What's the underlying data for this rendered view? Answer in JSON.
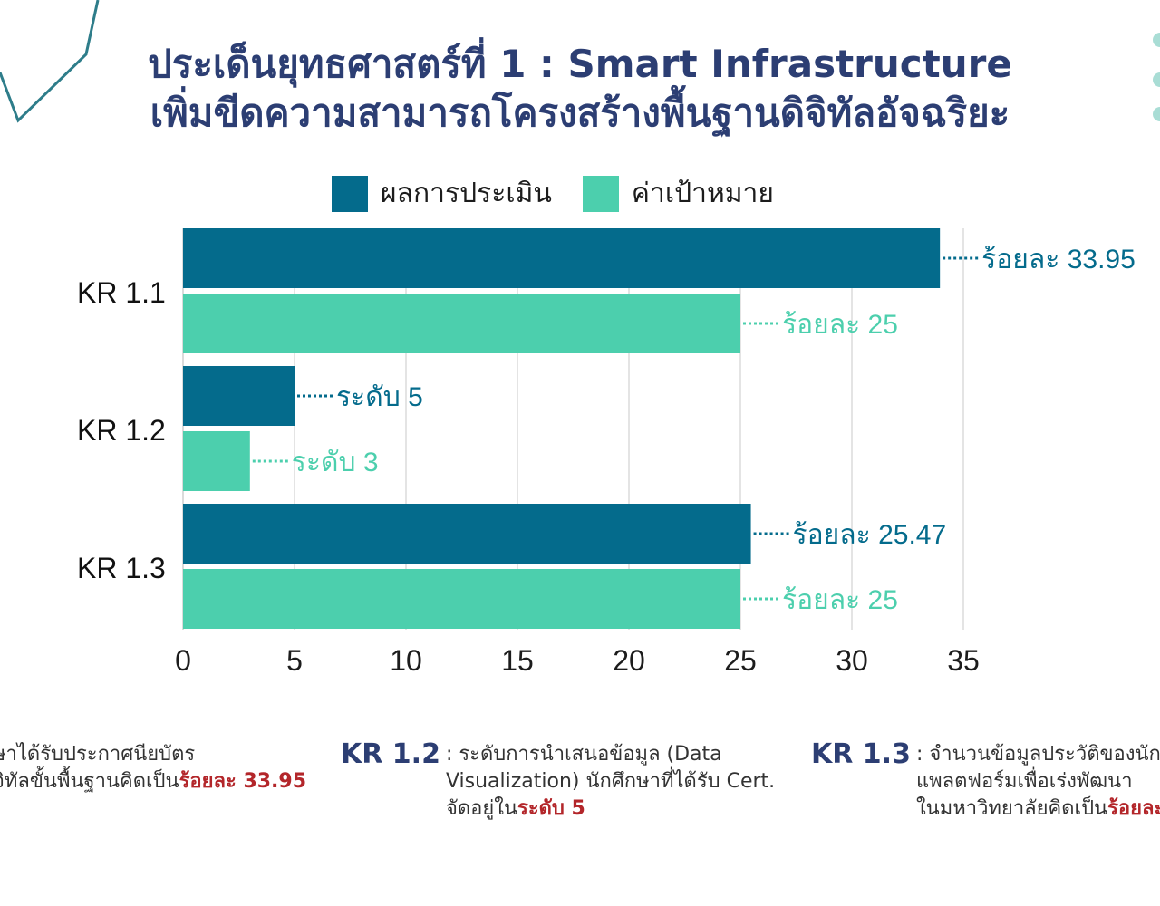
{
  "title": {
    "line1": "ประเด็นยุทธศาสตร์ที่ 1 : Smart Infrastructure",
    "line2": "เพิ่มขีดความสามารถโครงสร้างพื้นฐานดิจิทัลอัจฉริยะ"
  },
  "colors": {
    "result": "#046b8c",
    "target": "#4ccfad",
    "title": "#2c3e73",
    "highlight": "#b3262a"
  },
  "chart_data": {
    "type": "bar",
    "orientation": "horizontal",
    "categories": [
      "KR 1.1",
      "KR 1.2",
      "KR 1.3"
    ],
    "series": [
      {
        "name": "ผลการประเมิน",
        "values": [
          33.95,
          5,
          25.47
        ],
        "labels": [
          "ร้อยละ 33.95",
          "ระดับ 5",
          "ร้อยละ 25.47"
        ],
        "color": "#046b8c"
      },
      {
        "name": "ค่าเป้าหมาย",
        "values": [
          25,
          3,
          25
        ],
        "labels": [
          "ร้อยละ 25",
          "ระดับ 3",
          "ร้อยละ 25"
        ],
        "color": "#4ccfad"
      }
    ],
    "xlim": [
      0,
      35
    ],
    "xticks": [
      "0",
      "5",
      "10",
      "15",
      "20",
      "25",
      "30",
      "35"
    ],
    "grid": true,
    "legend_position": "top"
  },
  "notes": {
    "kr11": {
      "line1": "ษาได้รับประกาศนียบัตร",
      "line2_pre": "จิทัลขั้นพื้นฐานคิดเป็น",
      "line2_hl": "ร้อยละ 33.95"
    },
    "kr12": {
      "label": "KR 1.2",
      "line1": ": ระดับการนำเสนอข้อมูล (Data",
      "line2": "Visualization) นักศึกษาที่ได้รับ Cert.",
      "line3_pre": "จัดอยู่ใน",
      "line3_hl": "ระดับ 5"
    },
    "kr13": {
      "label": "KR 1.3",
      "line1": ": จำนวนข้อมูลประวัติของนัก",
      "line2": "แพลตฟอร์มเพื่อเร่งพัฒนา",
      "line3_pre": "ในมหาวิทยาลัยคิดเป็น",
      "line3_hl": "ร้อยละ"
    }
  }
}
